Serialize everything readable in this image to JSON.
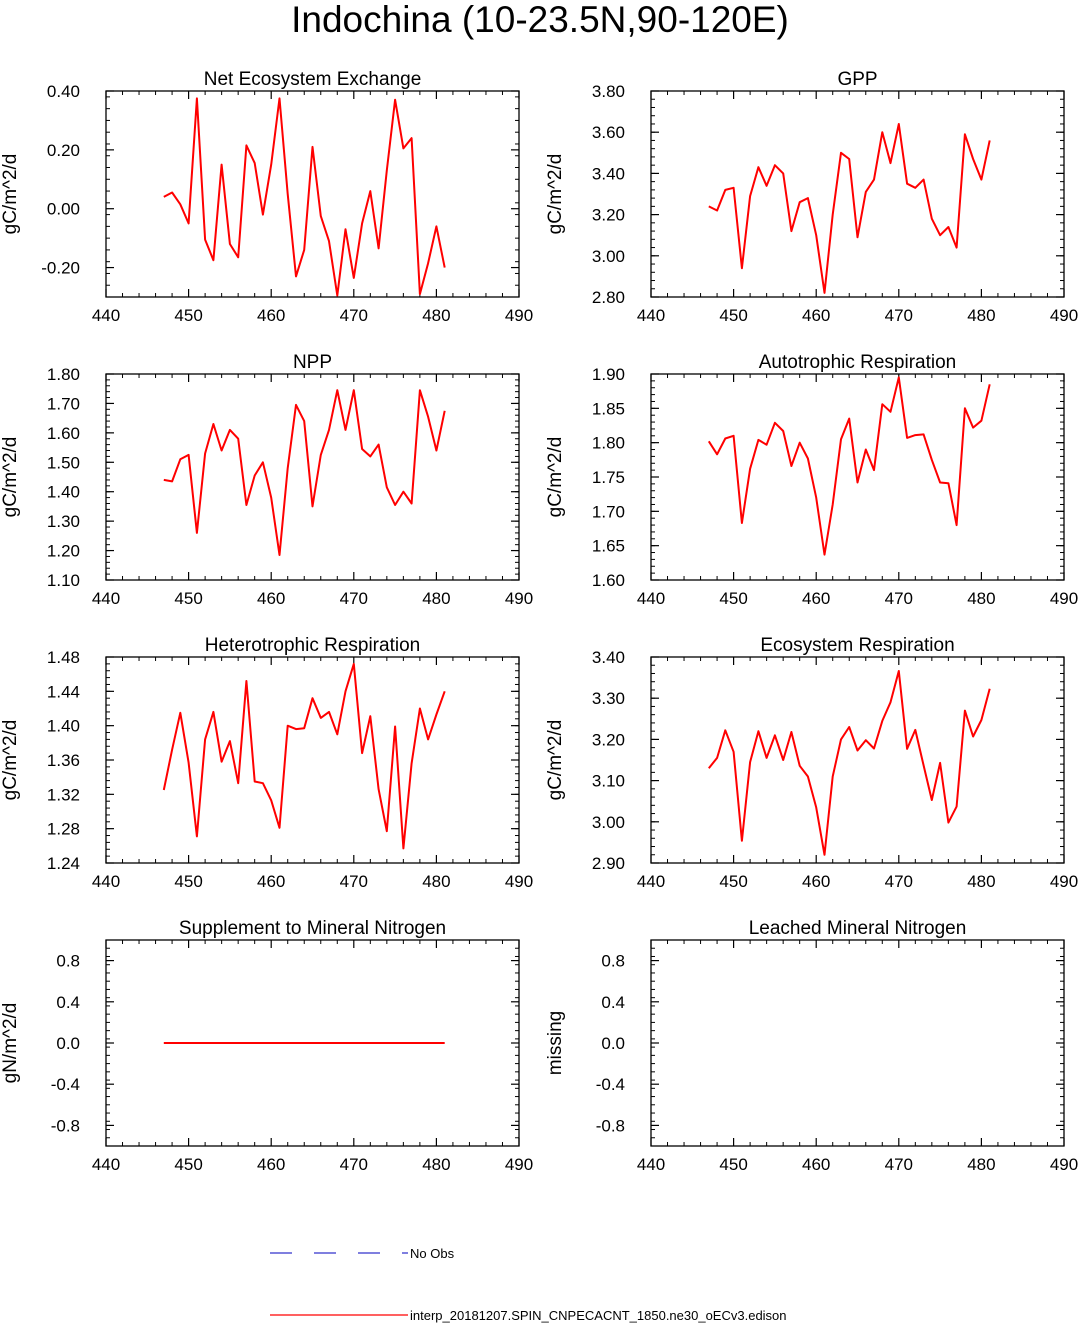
{
  "title": "Indochina (10-23.5N,90-120E)",
  "legend": {
    "obs_label": "No Obs",
    "obs_color": "#3333cc",
    "model_label": "interp_20181207.SPIN_CNPECACNT_1850.ne30_oECv3.edison",
    "model_color": "#ff0000"
  },
  "chart_data": [
    {
      "type": "line",
      "title": "Net Ecosystem Exchange",
      "ylabel": "gC/m^2/d",
      "xlabel": "",
      "xlim": [
        440,
        490
      ],
      "xticks": [
        "440",
        "450",
        "460",
        "470",
        "480",
        "490"
      ],
      "ylim": [
        -0.3,
        0.4
      ],
      "yticks": [
        "-0.20",
        "0.00",
        "0.20",
        "0.40"
      ],
      "ytick_values": [
        -0.2,
        0.0,
        0.2,
        0.4
      ],
      "series": [
        {
          "name": "model",
          "color": "#ff0000",
          "x": [
            447,
            448,
            449,
            450,
            451,
            452,
            453,
            454,
            455,
            456,
            457,
            458,
            459,
            460,
            461,
            462,
            463,
            464,
            465,
            466,
            467,
            468,
            469,
            470,
            471,
            472,
            473,
            474,
            475,
            476,
            477,
            478,
            479,
            480,
            481
          ],
          "y": [
            0.04,
            0.055,
            0.015,
            -0.05,
            0.375,
            -0.105,
            -0.175,
            0.15,
            -0.12,
            -0.165,
            0.215,
            0.155,
            -0.02,
            0.15,
            0.375,
            0.05,
            -0.23,
            -0.14,
            0.21,
            -0.025,
            -0.11,
            -0.295,
            -0.07,
            -0.235,
            -0.05,
            0.06,
            -0.135,
            0.13,
            0.37,
            0.205,
            0.24,
            -0.29,
            -0.185,
            -0.06,
            -0.2
          ]
        }
      ]
    },
    {
      "type": "line",
      "title": "GPP",
      "ylabel": "gC/m^2/d",
      "xlabel": "",
      "xlim": [
        440,
        490
      ],
      "xticks": [
        "440",
        "450",
        "460",
        "470",
        "480",
        "490"
      ],
      "ylim": [
        2.8,
        3.8
      ],
      "yticks": [
        "2.80",
        "3.00",
        "3.20",
        "3.40",
        "3.60",
        "3.80"
      ],
      "ytick_values": [
        2.8,
        3.0,
        3.2,
        3.4,
        3.6,
        3.8
      ],
      "series": [
        {
          "name": "model",
          "color": "#ff0000",
          "x": [
            447,
            448,
            449,
            450,
            451,
            452,
            453,
            454,
            455,
            456,
            457,
            458,
            459,
            460,
            461,
            462,
            463,
            464,
            465,
            466,
            467,
            468,
            469,
            470,
            471,
            472,
            473,
            474,
            475,
            476,
            477,
            478,
            479,
            480,
            481
          ],
          "y": [
            3.24,
            3.22,
            3.32,
            3.33,
            2.94,
            3.29,
            3.43,
            3.34,
            3.44,
            3.4,
            3.12,
            3.26,
            3.28,
            3.1,
            2.82,
            3.2,
            3.5,
            3.47,
            3.09,
            3.31,
            3.37,
            3.6,
            3.45,
            3.64,
            3.35,
            3.33,
            3.37,
            3.18,
            3.1,
            3.14,
            3.04,
            3.59,
            3.47,
            3.37,
            3.56
          ]
        }
      ]
    },
    {
      "type": "line",
      "title": "NPP",
      "ylabel": "gC/m^2/d",
      "xlabel": "",
      "xlim": [
        440,
        490
      ],
      "xticks": [
        "440",
        "450",
        "460",
        "470",
        "480",
        "490"
      ],
      "ylim": [
        1.1,
        1.8
      ],
      "yticks": [
        "1.10",
        "1.20",
        "1.30",
        "1.40",
        "1.50",
        "1.60",
        "1.70",
        "1.80"
      ],
      "ytick_values": [
        1.1,
        1.2,
        1.3,
        1.4,
        1.5,
        1.6,
        1.7,
        1.8
      ],
      "series": [
        {
          "name": "model",
          "color": "#ff0000",
          "x": [
            447,
            448,
            449,
            450,
            451,
            452,
            453,
            454,
            455,
            456,
            457,
            458,
            459,
            460,
            461,
            462,
            463,
            464,
            465,
            466,
            467,
            468,
            469,
            470,
            471,
            472,
            473,
            474,
            475,
            476,
            477,
            478,
            479,
            480,
            481
          ],
          "y": [
            1.44,
            1.435,
            1.51,
            1.525,
            1.26,
            1.53,
            1.63,
            1.54,
            1.61,
            1.58,
            1.355,
            1.455,
            1.5,
            1.38,
            1.185,
            1.48,
            1.695,
            1.64,
            1.35,
            1.525,
            1.61,
            1.745,
            1.61,
            1.745,
            1.545,
            1.52,
            1.56,
            1.415,
            1.355,
            1.4,
            1.36,
            1.745,
            1.655,
            1.54,
            1.675
          ]
        }
      ]
    },
    {
      "type": "line",
      "title": "Autotrophic Respiration",
      "ylabel": "gC/m^2/d",
      "xlabel": "",
      "xlim": [
        440,
        490
      ],
      "xticks": [
        "440",
        "450",
        "460",
        "470",
        "480",
        "490"
      ],
      "ylim": [
        1.6,
        1.9
      ],
      "yticks": [
        "1.60",
        "1.65",
        "1.70",
        "1.75",
        "1.80",
        "1.85",
        "1.90"
      ],
      "ytick_values": [
        1.6,
        1.65,
        1.7,
        1.75,
        1.8,
        1.85,
        1.9
      ],
      "series": [
        {
          "name": "model",
          "color": "#ff0000",
          "x": [
            447,
            448,
            449,
            450,
            451,
            452,
            453,
            454,
            455,
            456,
            457,
            458,
            459,
            460,
            461,
            462,
            463,
            464,
            465,
            466,
            467,
            468,
            469,
            470,
            471,
            472,
            473,
            474,
            475,
            476,
            477,
            478,
            479,
            480,
            481
          ],
          "y": [
            1.802,
            1.783,
            1.806,
            1.81,
            1.683,
            1.762,
            1.804,
            1.797,
            1.829,
            1.817,
            1.766,
            1.8,
            1.777,
            1.72,
            1.637,
            1.71,
            1.805,
            1.835,
            1.742,
            1.79,
            1.76,
            1.856,
            1.845,
            1.895,
            1.807,
            1.811,
            1.812,
            1.775,
            1.742,
            1.741,
            1.68,
            1.85,
            1.822,
            1.832,
            1.885
          ]
        }
      ]
    },
    {
      "type": "line",
      "title": "Heterotrophic Respiration",
      "ylabel": "gC/m^2/d",
      "xlabel": "",
      "xlim": [
        440,
        490
      ],
      "xticks": [
        "440",
        "450",
        "460",
        "470",
        "480",
        "490"
      ],
      "ylim": [
        1.24,
        1.48
      ],
      "yticks": [
        "1.24",
        "1.28",
        "1.32",
        "1.36",
        "1.40",
        "1.44",
        "1.48"
      ],
      "ytick_values": [
        1.24,
        1.28,
        1.32,
        1.36,
        1.4,
        1.44,
        1.48
      ],
      "series": [
        {
          "name": "model",
          "color": "#ff0000",
          "x": [
            447,
            448,
            449,
            450,
            451,
            452,
            453,
            454,
            455,
            456,
            457,
            458,
            459,
            460,
            461,
            462,
            463,
            464,
            465,
            466,
            467,
            468,
            469,
            470,
            471,
            472,
            473,
            474,
            475,
            476,
            477,
            478,
            479,
            480,
            481
          ],
          "y": [
            1.325,
            1.372,
            1.415,
            1.357,
            1.271,
            1.384,
            1.416,
            1.358,
            1.382,
            1.333,
            1.452,
            1.335,
            1.333,
            1.313,
            1.281,
            1.4,
            1.396,
            1.397,
            1.432,
            1.409,
            1.416,
            1.39,
            1.44,
            1.472,
            1.368,
            1.411,
            1.326,
            1.277,
            1.399,
            1.257,
            1.356,
            1.42,
            1.384,
            1.413,
            1.44
          ]
        }
      ]
    },
    {
      "type": "line",
      "title": "Ecosystem Respiration",
      "ylabel": "gC/m^2/d",
      "xlabel": "",
      "xlim": [
        440,
        490
      ],
      "xticks": [
        "440",
        "450",
        "460",
        "470",
        "480",
        "490"
      ],
      "ylim": [
        2.9,
        3.4
      ],
      "yticks": [
        "2.90",
        "3.00",
        "3.10",
        "3.20",
        "3.30",
        "3.40"
      ],
      "ytick_values": [
        2.9,
        3.0,
        3.1,
        3.2,
        3.3,
        3.4
      ],
      "series": [
        {
          "name": "model",
          "color": "#ff0000",
          "x": [
            447,
            448,
            449,
            450,
            451,
            452,
            453,
            454,
            455,
            456,
            457,
            458,
            459,
            460,
            461,
            462,
            463,
            464,
            465,
            466,
            467,
            468,
            469,
            470,
            471,
            472,
            473,
            474,
            475,
            476,
            477,
            478,
            479,
            480,
            481
          ],
          "y": [
            3.13,
            3.155,
            3.222,
            3.17,
            2.954,
            3.145,
            3.22,
            3.155,
            3.21,
            3.15,
            3.218,
            3.136,
            3.11,
            3.035,
            2.92,
            3.11,
            3.2,
            3.23,
            3.173,
            3.198,
            3.178,
            3.245,
            3.29,
            3.366,
            3.177,
            3.223,
            3.137,
            3.053,
            3.143,
            2.998,
            3.037,
            3.27,
            3.207,
            3.247,
            3.323
          ]
        }
      ]
    },
    {
      "type": "line",
      "title": "Supplement to Mineral Nitrogen",
      "ylabel": "gN/m^2/d",
      "xlabel": "",
      "xlim": [
        440,
        490
      ],
      "xticks": [
        "440",
        "450",
        "460",
        "470",
        "480",
        "490"
      ],
      "ylim": [
        -1.0,
        1.0
      ],
      "yticks": [
        "-0.8",
        "-0.4",
        "0.0",
        "0.4",
        "0.8"
      ],
      "ytick_values": [
        -0.8,
        -0.4,
        0.0,
        0.4,
        0.8
      ],
      "series": [
        {
          "name": "model",
          "color": "#ff0000",
          "x": [
            447,
            481
          ],
          "y": [
            0.0,
            0.0
          ]
        }
      ]
    },
    {
      "type": "line",
      "title": "Leached Mineral Nitrogen",
      "ylabel": "missing",
      "xlabel": "",
      "xlim": [
        440,
        490
      ],
      "xticks": [
        "440",
        "450",
        "460",
        "470",
        "480",
        "490"
      ],
      "ylim": [
        -1.0,
        1.0
      ],
      "yticks": [
        "-0.8",
        "-0.4",
        "0.0",
        "0.4",
        "0.8"
      ],
      "ytick_values": [
        -0.8,
        -0.4,
        0.0,
        0.4,
        0.8
      ],
      "series": []
    }
  ]
}
